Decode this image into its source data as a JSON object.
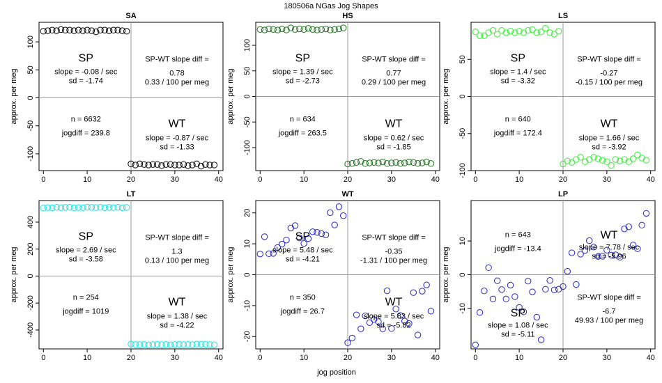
{
  "figure": {
    "title": "180506a   NGas Jog Shapes",
    "xlabel": "jog position"
  },
  "colors": {
    "axis": "#000000",
    "divider": "#9a9a9a"
  },
  "chart_data": [
    {
      "type": "scatter",
      "title": "SA",
      "color": "#000000",
      "xlim": [
        -1,
        41
      ],
      "ylim": [
        -130,
        135
      ],
      "yticks": [
        -100,
        -50,
        0,
        50,
        100
      ],
      "xticks": [
        0,
        10,
        20,
        30,
        40
      ],
      "ylabel": "approx. per meg",
      "x": [
        0,
        1,
        2,
        3,
        4,
        5,
        6,
        7,
        8,
        9,
        10,
        11,
        12,
        13,
        14,
        15,
        16,
        17,
        18,
        19,
        20,
        21,
        22,
        23,
        24,
        25,
        26,
        27,
        28,
        29,
        30,
        31,
        32,
        33,
        34,
        35,
        36,
        37,
        38,
        39
      ],
      "y": [
        119,
        120,
        121,
        120,
        122,
        121,
        121,
        120,
        121,
        120,
        121,
        120,
        118,
        121,
        121,
        120,
        121,
        121,
        120,
        119,
        -118,
        -120,
        -118,
        -119,
        -120,
        -119,
        -119,
        -121,
        -119,
        -119,
        -120,
        -120,
        -119,
        -121,
        -120,
        -118,
        -122,
        -119,
        -120,
        -120
      ],
      "sp_label": "SP",
      "sp_slope": "slope = -0.08 / sec",
      "sp_sd": "sd = -1.74",
      "wt_label": "WT",
      "wt_slope": "slope = -0.87 / sec",
      "wt_sd": "sd = -1.33",
      "n": "n = 6632",
      "jogdiff": "jogdiff = 239.8",
      "diff_label": "SP-WT slope diff =",
      "diff_value": "0.78",
      "diff_permeg": "0.33 / 100 per meg"
    },
    {
      "type": "scatter",
      "title": "HS",
      "color": "#1e6e1e",
      "xlim": [
        -1,
        41
      ],
      "ylim": [
        -145,
        145
      ],
      "yticks": [
        -100,
        -50,
        0,
        50,
        100
      ],
      "xticks": [
        0,
        10,
        20,
        30,
        40
      ],
      "ylabel": "approx. per meg",
      "x": [
        0,
        1,
        2,
        3,
        4,
        5,
        6,
        7,
        8,
        9,
        10,
        11,
        12,
        13,
        14,
        15,
        16,
        17,
        18,
        19,
        20,
        21,
        22,
        23,
        24,
        25,
        26,
        27,
        28,
        29,
        30,
        31,
        32,
        33,
        34,
        35,
        36,
        37,
        38,
        39
      ],
      "y": [
        131,
        130,
        132,
        131,
        130,
        132,
        130,
        134,
        131,
        132,
        131,
        133,
        131,
        130,
        131,
        132,
        130,
        131,
        132,
        134,
        -132,
        -131,
        -129,
        -127,
        -131,
        -130,
        -129,
        -130,
        -128,
        -131,
        -130,
        -129,
        -131,
        -130,
        -128,
        -129,
        -131,
        -130,
        -128,
        -131
      ],
      "sp_label": "SP",
      "sp_slope": "slope = 1.39 / sec",
      "sp_sd": "sd = -2.73",
      "wt_label": "WT",
      "wt_slope": "slope = 0.62 / sec",
      "wt_sd": "sd = -1.85",
      "n": "n = 634",
      "jogdiff": "jogdiff = 263.5",
      "diff_label": "SP-WT slope diff =",
      "diff_value": "0.77",
      "diff_permeg": "0.29 / 100 per meg"
    },
    {
      "type": "scatter",
      "title": "LS",
      "color": "#33ee33",
      "xlim": [
        -1,
        41
      ],
      "ylim": [
        -100,
        100
      ],
      "yticks": [
        -100,
        -50,
        0,
        50
      ],
      "xticks": [
        0,
        10,
        20,
        30,
        40
      ],
      "ylabel": "approx. per meg",
      "x": [
        0,
        1,
        2,
        3,
        4,
        5,
        6,
        7,
        8,
        9,
        10,
        11,
        12,
        13,
        14,
        15,
        16,
        17,
        18,
        19,
        20,
        21,
        22,
        23,
        24,
        25,
        26,
        27,
        28,
        29,
        30,
        31,
        32,
        33,
        34,
        35,
        36,
        37,
        38,
        39
      ],
      "y": [
        87,
        82,
        82,
        86,
        89,
        84,
        89,
        86,
        88,
        86,
        88,
        86,
        89,
        90,
        86,
        87,
        92,
        86,
        84,
        88,
        -91,
        -87,
        -89,
        -85,
        -82,
        -88,
        -85,
        -82,
        -84,
        -86,
        -88,
        -93,
        -85,
        -87,
        -85,
        -88,
        -84,
        -79,
        -83,
        -86
      ],
      "sp_label": "SP",
      "sp_slope": "slope = 1.4 / sec",
      "sp_sd": "sd = -3.32",
      "wt_label": "WT",
      "wt_slope": "slope = 1.66 / sec",
      "wt_sd": "sd = -3.92",
      "n": "n = 640",
      "jogdiff": "jogdiff = 172.4",
      "diff_label": "SP-WT slope diff =",
      "diff_value": "-0.27",
      "diff_permeg": "-0.15 / 100 per meg"
    },
    {
      "type": "scatter",
      "title": "LT",
      "color": "#22e0e0",
      "xlim": [
        -1,
        41
      ],
      "ylim": [
        -540,
        560
      ],
      "yticks": [
        -400,
        -200,
        0,
        200,
        400
      ],
      "xticks": [
        0,
        10,
        20,
        30,
        40
      ],
      "ylabel": "approx. per meg",
      "x": [
        0,
        1,
        2,
        3,
        4,
        5,
        6,
        7,
        8,
        9,
        10,
        11,
        12,
        13,
        14,
        15,
        16,
        17,
        18,
        19,
        20,
        21,
        22,
        23,
        24,
        25,
        26,
        27,
        28,
        29,
        30,
        31,
        32,
        33,
        34,
        35,
        36,
        37,
        38,
        39
      ],
      "y": [
        505,
        508,
        506,
        510,
        507,
        509,
        510,
        506,
        508,
        507,
        511,
        509,
        508,
        510,
        507,
        509,
        508,
        510,
        506,
        509,
        -505,
        -508,
        -509,
        -507,
        -510,
        -508,
        -506,
        -509,
        -507,
        -510,
        -508,
        -506,
        -508,
        -507,
        -509,
        -505,
        -507,
        -506,
        -508,
        -510
      ],
      "sp_label": "SP",
      "sp_slope": "slope = 2.69 / sec",
      "sp_sd": "sd = -3.58",
      "wt_label": "WT",
      "wt_slope": "slope = 1.38 / sec",
      "wt_sd": "sd = -4.22",
      "n": "n = 254",
      "jogdiff": "jogdiff = 1019",
      "diff_label": "SP-WT slope diff =",
      "diff_value": "1.3",
      "diff_permeg": "0.13 / 100 per meg"
    },
    {
      "type": "scatter",
      "title": "WT",
      "color": "#2222cc",
      "xlim": [
        -1,
        41
      ],
      "ylim": [
        -24,
        24
      ],
      "yticks": [
        -20,
        -10,
        0,
        10,
        20
      ],
      "xticks": [
        0,
        10,
        20,
        30,
        40
      ],
      "ylabel": "approx. per meg",
      "x": [
        0,
        1,
        2,
        3,
        4,
        5,
        6,
        7,
        8,
        9,
        10,
        11,
        12,
        13,
        14,
        15,
        16,
        17,
        18,
        19,
        20,
        21,
        22,
        23,
        24,
        25,
        26,
        27,
        28,
        29,
        30,
        31,
        32,
        33,
        34,
        35,
        36,
        37,
        38,
        39
      ],
      "y": [
        6.7,
        12.3,
        6.8,
        6.9,
        8.8,
        9.9,
        11.2,
        15.1,
        15.9,
        11.9,
        10.1,
        11.7,
        13.9,
        13.7,
        13.3,
        12.9,
        20.1,
        16.1,
        22,
        19.1,
        -22,
        -20.5,
        -13,
        -17.5,
        -13.3,
        -15.5,
        -14.5,
        -15.2,
        -17.5,
        -5.2,
        -17.4,
        -11.1,
        -13.2,
        -15,
        -15.8,
        -5.8,
        -19.5,
        -5.3,
        -3.3,
        -11.8
      ],
      "sp_label": "SP",
      "sp_slope": "slope = 5.48 / sec",
      "sp_sd": "sd = -4.21",
      "wt_label": "WT",
      "wt_slope": "slope = 5.83 / sec",
      "wt_sd": "sd = -5.82",
      "n": "n = 350",
      "jogdiff": "jogdiff = 26.7",
      "diff_label": "SP-WT slope diff =",
      "diff_value": "-0.35",
      "diff_permeg": "-1.31 / 100 per meg"
    },
    {
      "type": "scatter",
      "title": "LP",
      "color": "#2222cc",
      "xlim": [
        -1,
        41
      ],
      "ylim": [
        -22,
        22
      ],
      "yticks": [
        -10,
        0,
        10
      ],
      "xticks": [
        0,
        10,
        20,
        30,
        40
      ],
      "ylabel": "approx. per meg",
      "x": [
        0,
        1,
        2,
        3,
        4,
        5,
        6,
        7,
        8,
        9,
        10,
        11,
        12,
        13,
        14,
        15,
        16,
        17,
        18,
        19,
        20,
        21,
        22,
        23,
        24,
        25,
        26,
        27,
        28,
        29,
        30,
        31,
        32,
        33,
        34,
        35,
        36,
        37,
        38,
        39
      ],
      "y": [
        -20.8,
        -11.2,
        -4.8,
        2.1,
        -7.2,
        -1.8,
        -4.4,
        -7.2,
        -3.1,
        -6.5,
        -9.7,
        -11,
        -1.9,
        -5.1,
        -12.6,
        -19.3,
        -4.3,
        -1.7,
        -4.5,
        -4.3,
        -3.5,
        1,
        6.5,
        -2.9,
        6.1,
        7.2,
        10.1,
        8.2,
        5.4,
        5.5,
        7.3,
        5.8,
        5.9,
        5.2,
        13.6,
        14.2,
        8.8,
        7.7,
        14.7,
        18.2
      ],
      "sp_label": "SP",
      "sp_slope": "slope = 1.08 / sec",
      "sp_sd": "sd = -5.11",
      "wt_label": "WT",
      "wt_slope": "slope = 7.78 / sec",
      "wt_sd": "sd = -5.96",
      "n": "n = 643",
      "jogdiff": "jogdiff = -13.4",
      "diff_label": "SP-WT slope diff =",
      "diff_value": "-6.7",
      "diff_permeg": "49.93 / 100 per meg"
    }
  ]
}
